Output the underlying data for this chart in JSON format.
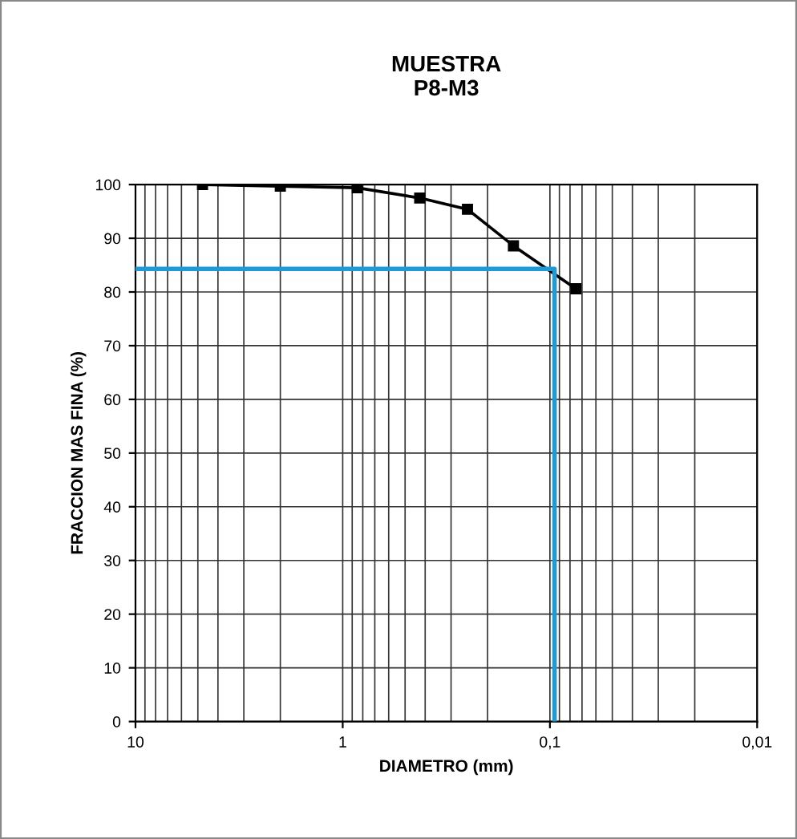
{
  "chart_data": {
    "type": "line",
    "title": "MUESTRA\nP8-M3",
    "xlabel": "DIAMETRO (mm)",
    "ylabel": "FRACCION MAS FINA (%)",
    "log": "x",
    "xlim": [
      10,
      0.01
    ],
    "xticks": [
      10,
      1,
      {
        "value": 0.1,
        "label": "0,1"
      },
      {
        "value": 0.01,
        "label": "0,01"
      }
    ],
    "ylim": [
      0,
      100
    ],
    "yticks": [
      0,
      10,
      20,
      30,
      40,
      50,
      60,
      70,
      80,
      90,
      100
    ],
    "grid": true,
    "marker": "square",
    "line_style": "solid",
    "series": [
      {
        "color": "#000000",
        "x": [
          4.75,
          2.0,
          0.85,
          0.425,
          0.25,
          0.15,
          0.075
        ],
        "values": [
          100,
          99.7,
          99.4,
          97.5,
          95.4,
          88.6,
          80.6
        ]
      },
      {
        "color": "#1f9ad6",
        "marker": "none",
        "x": [
          10,
          0.095,
          0.095
        ],
        "values": [
          84.3,
          84.3,
          0
        ]
      }
    ]
  }
}
